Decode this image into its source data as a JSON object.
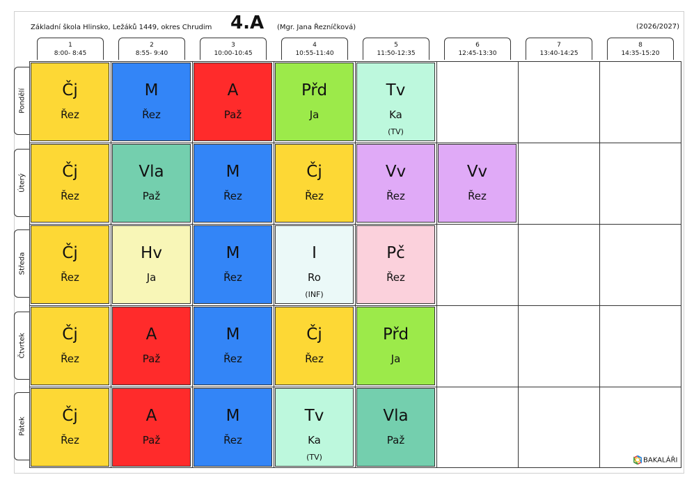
{
  "header": {
    "school": "Základní škola Hlinsko, Ležáků 1449, okres Chrudim",
    "class_name": "4.A",
    "teacher": "(Mgr. Jana Řezníčková)",
    "year": "(2026/2027)"
  },
  "periods": [
    {
      "num": "1",
      "time": "8:00- 8:45"
    },
    {
      "num": "2",
      "time": "8:55- 9:40"
    },
    {
      "num": "3",
      "time": "10:00-10:45"
    },
    {
      "num": "4",
      "time": "10:55-11:40"
    },
    {
      "num": "5",
      "time": "11:50-12:35"
    },
    {
      "num": "6",
      "time": "12:45-13:30"
    },
    {
      "num": "7",
      "time": "13:40-14:25"
    },
    {
      "num": "8",
      "time": "14:35-15:20"
    }
  ],
  "days": [
    "Pondělí",
    "Úterý",
    "Středa",
    "Čtvrtek",
    "Pátek"
  ],
  "colors": {
    "Cj": "#fdd835",
    "M": "#3385f7",
    "A": "#ff2b2b",
    "Prd": "#9cea4a",
    "Tv": "#bdf8dd",
    "Vla": "#74cfae",
    "Vv": "#e0aaf7",
    "Hv": "#f8f6b7",
    "I": "#ebf9f8",
    "Pc": "#fbd1dc"
  },
  "lessons": [
    [
      {
        "subject": "Čj",
        "teacher": "Řez",
        "room": "",
        "color": "#fdd835"
      },
      {
        "subject": "M",
        "teacher": "Řez",
        "room": "",
        "color": "#3385f7"
      },
      {
        "subject": "A",
        "teacher": "Paž",
        "room": "",
        "color": "#ff2b2b"
      },
      {
        "subject": "Přd",
        "teacher": "Ja",
        "room": "",
        "color": "#9cea4a"
      },
      {
        "subject": "Tv",
        "teacher": "Ka",
        "room": "(TV)",
        "color": "#bdf8dd"
      }
    ],
    [
      {
        "subject": "Čj",
        "teacher": "Řez",
        "room": "",
        "color": "#fdd835"
      },
      {
        "subject": "Vla",
        "teacher": "Paž",
        "room": "",
        "color": "#74cfae"
      },
      {
        "subject": "M",
        "teacher": "Řez",
        "room": "",
        "color": "#3385f7"
      },
      {
        "subject": "Čj",
        "teacher": "Řez",
        "room": "",
        "color": "#fdd835"
      },
      {
        "subject": "Vv",
        "teacher": "Řez",
        "room": "",
        "color": "#e0aaf7"
      },
      {
        "subject": "Vv",
        "teacher": "Řez",
        "room": "",
        "color": "#e0aaf7"
      }
    ],
    [
      {
        "subject": "Čj",
        "teacher": "Řez",
        "room": "",
        "color": "#fdd835"
      },
      {
        "subject": "Hv",
        "teacher": "Ja",
        "room": "",
        "color": "#f8f6b7"
      },
      {
        "subject": "M",
        "teacher": "Řez",
        "room": "",
        "color": "#3385f7"
      },
      {
        "subject": "I",
        "teacher": "Ro",
        "room": "(INF)",
        "color": "#ebf9f8"
      },
      {
        "subject": "Pč",
        "teacher": "Řez",
        "room": "",
        "color": "#fbd1dc"
      }
    ],
    [
      {
        "subject": "Čj",
        "teacher": "Řez",
        "room": "",
        "color": "#fdd835"
      },
      {
        "subject": "A",
        "teacher": "Paž",
        "room": "",
        "color": "#ff2b2b"
      },
      {
        "subject": "M",
        "teacher": "Řez",
        "room": "",
        "color": "#3385f7"
      },
      {
        "subject": "Čj",
        "teacher": "Řez",
        "room": "",
        "color": "#fdd835"
      },
      {
        "subject": "Přd",
        "teacher": "Ja",
        "room": "",
        "color": "#9cea4a"
      }
    ],
    [
      {
        "subject": "Čj",
        "teacher": "Řez",
        "room": "",
        "color": "#fdd835"
      },
      {
        "subject": "A",
        "teacher": "Paž",
        "room": "",
        "color": "#ff2b2b"
      },
      {
        "subject": "M",
        "teacher": "Řez",
        "room": "",
        "color": "#3385f7"
      },
      {
        "subject": "Tv",
        "teacher": "Ka",
        "room": "(TV)",
        "color": "#bdf8dd"
      },
      {
        "subject": "Vla",
        "teacher": "Paž",
        "room": "",
        "color": "#74cfae"
      }
    ]
  ],
  "brand": {
    "name": "BAKALÁŘI",
    "icon": "bakalari-logo-icon"
  }
}
